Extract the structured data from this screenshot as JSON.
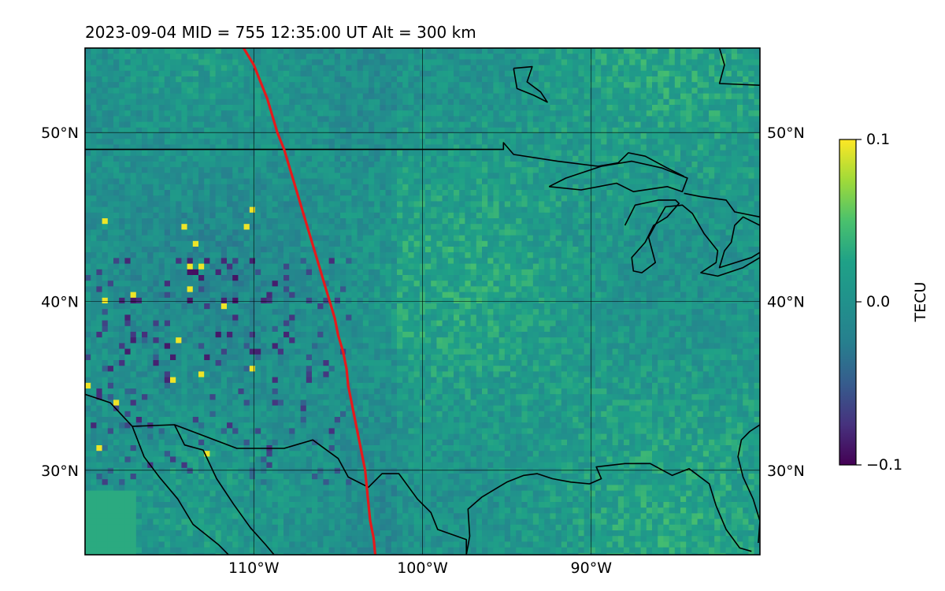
{
  "title": "2023-09-04  MID = 755    12:35:00  UT  Alt = 300 km",
  "map": {
    "lon_range": [
      -120,
      -80
    ],
    "lat_range": [
      25,
      55
    ],
    "meridians": [
      -110,
      -100,
      -90
    ],
    "parallels": [
      30,
      40,
      50
    ],
    "lon_labels": [
      "110°W",
      "100°W",
      "90°W"
    ],
    "lat_labels": [
      "30°N",
      "40°N",
      "50°N"
    ],
    "grid": true,
    "terminator_color": "#e41a1c",
    "coast_color": "#000000",
    "terminator": [
      [
        -110.6,
        55
      ],
      [
        -110.0,
        54
      ],
      [
        -109.6,
        53
      ],
      [
        -109.2,
        52
      ],
      [
        -108.9,
        51
      ],
      [
        -108.6,
        50
      ],
      [
        -108.2,
        49
      ],
      [
        -107.9,
        48
      ],
      [
        -107.6,
        47
      ],
      [
        -107.3,
        46
      ],
      [
        -107.0,
        45
      ],
      [
        -106.7,
        44
      ],
      [
        -106.4,
        43
      ],
      [
        -106.1,
        42
      ],
      [
        -105.8,
        41
      ],
      [
        -105.5,
        40
      ],
      [
        -105.2,
        39
      ],
      [
        -105.0,
        38
      ],
      [
        -104.7,
        37
      ],
      [
        -104.5,
        36
      ],
      [
        -104.4,
        35
      ],
      [
        -104.2,
        34
      ],
      [
        -104.0,
        33
      ],
      [
        -103.8,
        32
      ],
      [
        -103.6,
        31
      ],
      [
        -103.4,
        30
      ],
      [
        -103.3,
        29
      ],
      [
        -103.2,
        28
      ],
      [
        -103.1,
        27
      ],
      [
        -102.9,
        26
      ],
      [
        -102.8,
        25
      ]
    ],
    "boundaries": [
      [
        [
          -120,
          49
        ],
        [
          -95.2,
          49
        ],
        [
          -95.2,
          49.4
        ],
        [
          -94.6,
          48.7
        ],
        [
          -92,
          48.3
        ],
        [
          -89.6,
          48.0
        ],
        [
          -88.4,
          48.2
        ],
        [
          -87.8,
          48.8
        ],
        [
          -86.8,
          48.6
        ],
        [
          -85.5,
          47.9
        ],
        [
          -84.5,
          47.4
        ]
      ],
      [
        [
          -120,
          34.5
        ],
        [
          -118.5,
          34.0
        ],
        [
          -117.2,
          32.6
        ],
        [
          -114.7,
          32.7
        ],
        [
          -111.0,
          31.3
        ],
        [
          -108.2,
          31.3
        ],
        [
          -106.5,
          31.8
        ],
        [
          -105.0,
          30.7
        ],
        [
          -104.4,
          29.6
        ],
        [
          -103.2,
          29.0
        ],
        [
          -102.4,
          29.8
        ],
        [
          -101.4,
          29.8
        ],
        [
          -100.3,
          28.3
        ],
        [
          -99.5,
          27.5
        ],
        [
          -99.1,
          26.5
        ],
        [
          -97.4,
          25.9
        ],
        [
          -97.4,
          25
        ]
      ],
      [
        [
          -97.4,
          25
        ],
        [
          -97.2,
          26.1
        ],
        [
          -97.3,
          27.7
        ],
        [
          -96.5,
          28.4
        ],
        [
          -95.0,
          29.3
        ],
        [
          -94.0,
          29.7
        ],
        [
          -93.2,
          29.8
        ],
        [
          -92.3,
          29.5
        ],
        [
          -91.2,
          29.3
        ],
        [
          -90.1,
          29.2
        ],
        [
          -89.4,
          29.5
        ],
        [
          -89.7,
          30.2
        ],
        [
          -88.0,
          30.4
        ],
        [
          -86.5,
          30.4
        ],
        [
          -85.2,
          29.7
        ],
        [
          -84.2,
          30.1
        ],
        [
          -83.0,
          29.2
        ],
        [
          -82.6,
          27.9
        ],
        [
          -82.0,
          26.5
        ],
        [
          -81.2,
          25.4
        ],
        [
          -80.5,
          25.2
        ]
      ],
      [
        [
          -80.1,
          25.7
        ],
        [
          -80.0,
          27.0
        ],
        [
          -80.4,
          28.3
        ],
        [
          -81.0,
          29.6
        ],
        [
          -81.3,
          30.8
        ],
        [
          -81.1,
          31.8
        ],
        [
          -80.6,
          32.3
        ],
        [
          -80,
          32.7
        ]
      ],
      [
        [
          -117.2,
          32.6
        ],
        [
          -116.5,
          30.8
        ],
        [
          -115.6,
          29.6
        ],
        [
          -114.5,
          28.3
        ],
        [
          -113.6,
          26.8
        ],
        [
          -112.1,
          25.6
        ],
        [
          -111.5,
          25
        ]
      ],
      [
        [
          -114.7,
          32.7
        ],
        [
          -114.1,
          31.5
        ],
        [
          -113.0,
          31.2
        ],
        [
          -112.2,
          29.5
        ],
        [
          -111.2,
          28.0
        ],
        [
          -110.2,
          26.6
        ],
        [
          -109.3,
          25.6
        ],
        [
          -108.8,
          25
        ]
      ],
      [
        [
          -92.5,
          46.8
        ],
        [
          -90.6,
          46.6
        ],
        [
          -88.5,
          47.0
        ],
        [
          -87.5,
          46.5
        ],
        [
          -85.5,
          46.8
        ],
        [
          -84.6,
          46.5
        ],
        [
          -84.3,
          47.3
        ],
        [
          -85.8,
          47.9
        ],
        [
          -87.6,
          48.3
        ],
        [
          -89.4,
          48.0
        ],
        [
          -91.5,
          47.3
        ],
        [
          -92.5,
          46.8
        ]
      ],
      [
        [
          -88.0,
          44.5
        ],
        [
          -87.4,
          45.7
        ],
        [
          -86.0,
          46.0
        ],
        [
          -85.0,
          46.0
        ],
        [
          -84.8,
          45.8
        ],
        [
          -85.5,
          45.0
        ],
        [
          -86.3,
          44.5
        ],
        [
          -86.8,
          43.5
        ],
        [
          -87.6,
          42.6
        ],
        [
          -87.5,
          41.8
        ],
        [
          -87.0,
          41.7
        ],
        [
          -86.2,
          42.3
        ],
        [
          -86.6,
          43.8
        ],
        [
          -86.0,
          44.9
        ],
        [
          -85.6,
          45.6
        ],
        [
          -84.6,
          45.7
        ],
        [
          -84.0,
          45.2
        ],
        [
          -83.3,
          44.0
        ],
        [
          -82.5,
          43.0
        ],
        [
          -82.6,
          42.3
        ],
        [
          -83.5,
          41.7
        ],
        [
          -82.5,
          41.5
        ],
        [
          -81.0,
          42.0
        ],
        [
          -80,
          42.6
        ]
      ],
      [
        [
          -80,
          45.0
        ],
        [
          -81.5,
          45.3
        ],
        [
          -82.0,
          46.0
        ],
        [
          -83.5,
          46.2
        ],
        [
          -84.5,
          46.4
        ]
      ],
      [
        [
          -80,
          44.5
        ],
        [
          -81.0,
          45.0
        ],
        [
          -81.5,
          44.5
        ],
        [
          -81.7,
          43.5
        ],
        [
          -82.1,
          43.0
        ],
        [
          -82.4,
          42.0
        ],
        [
          -80.5,
          42.6
        ],
        [
          -80,
          42.9
        ]
      ],
      [
        [
          -80,
          52.8
        ],
        [
          -82.4,
          52.9
        ],
        [
          -82.1,
          54.0
        ],
        [
          -82.4,
          55
        ]
      ],
      [
        [
          -94.6,
          53.8
        ],
        [
          -93.5,
          53.9
        ],
        [
          -93.8,
          53.0
        ],
        [
          -93.0,
          52.4
        ],
        [
          -92.6,
          51.8
        ],
        [
          -93.4,
          52.2
        ],
        [
          -94.4,
          52.6
        ],
        [
          -94.6,
          53.8
        ]
      ]
    ]
  },
  "colorbar": {
    "label": "TECU",
    "min": -0.1,
    "max": 0.1,
    "tick_labels": [
      "−0.1",
      "0.0",
      "0.1"
    ],
    "colormap": "viridis"
  }
}
